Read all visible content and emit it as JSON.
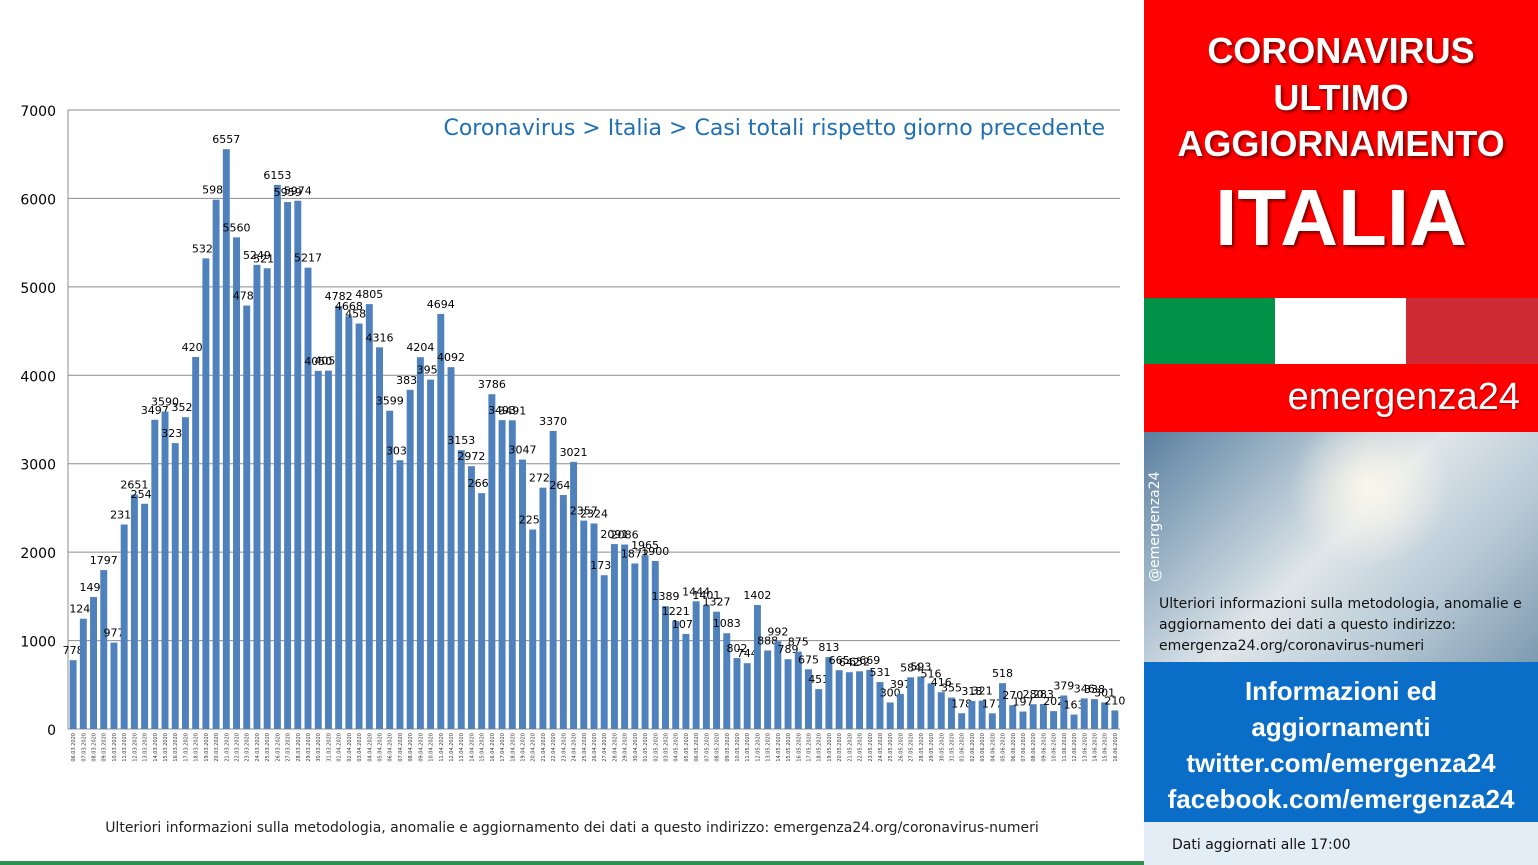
{
  "chart_data": {
    "type": "bar",
    "title": "Coronavirus > Italia > Casi totali rispetto giorno precedente",
    "xlabel": "",
    "ylabel": "",
    "ylim": [
      0,
      7000
    ],
    "yticks": [
      0,
      1000,
      2000,
      3000,
      4000,
      5000,
      6000,
      7000
    ],
    "grid": true,
    "bar_color": "#4f81bd",
    "categories": [
      "06.03.2020",
      "07.03.2020",
      "08.03.2020",
      "09.03.2020",
      "10.03.2020",
      "11.03.2020",
      "12.03.2020",
      "13.03.2020",
      "14.03.2020",
      "15.03.2020",
      "16.03.2020",
      "17.03.2020",
      "18.03.2020",
      "19.03.2020",
      "20.03.2020",
      "21.03.2020",
      "22.03.2020",
      "23.03.2020",
      "24.03.2020",
      "25.03.2020",
      "26.03.2020",
      "27.03.2020",
      "28.03.2020",
      "29.03.2020",
      "30.03.2020",
      "31.03.2020",
      "01.04.2020",
      "02.04.2020",
      "03.04.2020",
      "04.04.2020",
      "05.04.2020",
      "06.04.2020",
      "07.04.2020",
      "08.04.2020",
      "09.04.2020",
      "10.04.2020",
      "11.04.2020",
      "12.04.2020",
      "13.04.2020",
      "14.04.2020",
      "15.04.2020",
      "16.04.2020",
      "17.04.2020",
      "18.04.2020",
      "19.04.2020",
      "20.04.2020",
      "21.04.2020",
      "22.04.2020",
      "23.04.2020",
      "24.04.2020",
      "25.04.2020",
      "26.04.2020",
      "27.04.2020",
      "28.04.2020",
      "29.04.2020",
      "30.04.2020",
      "01.05.2020",
      "02.05.2020",
      "03.05.2020",
      "04.05.2020",
      "05.05.2020",
      "06.05.2020",
      "07.05.2020",
      "08.05.2020",
      "09.05.2020",
      "10.05.2020",
      "11.05.2020",
      "12.05.2020",
      "13.05.2020",
      "14.05.2020",
      "15.05.2020",
      "16.05.2020",
      "17.05.2020",
      "18.05.2020",
      "19.05.2020",
      "20.05.2020",
      "21.05.2020",
      "22.05.2020",
      "23.05.2020",
      "24.05.2020",
      "25.05.2020",
      "26.05.2020",
      "27.05.2020",
      "28.05.2020",
      "29.05.2020",
      "30.05.2020",
      "31.05.2020",
      "01.06.2020",
      "02.06.2020",
      "03.06.2020",
      "04.06.2020",
      "05.06.2020",
      "06.06.2020",
      "07.06.2020",
      "08.06.2020",
      "09.06.2020",
      "10.06.2020",
      "11.06.2020",
      "12.06.2020",
      "13.06.2020",
      "14.06.2020",
      "15.06.2020",
      "16.06.2020"
    ],
    "values": [
      778,
      1247,
      1492,
      1797,
      977,
      2313,
      2651,
      2547,
      3497,
      3590,
      3233,
      3526,
      4207,
      5322,
      5986,
      6557,
      5560,
      4789,
      5249,
      5210,
      6153,
      5959,
      5974,
      5217,
      4050,
      4053,
      4782,
      4668,
      4585,
      4805,
      4316,
      3599,
      3039,
      3836,
      4204,
      3951,
      4694,
      4092,
      3153,
      2972,
      2667,
      3786,
      3493,
      3491,
      3047,
      2256,
      2729,
      3370,
      2646,
      3021,
      2357,
      2324,
      1739,
      2091,
      2086,
      1872,
      1965,
      1900,
      1389,
      1221,
      1075,
      1444,
      1401,
      1327,
      1083,
      802,
      744,
      1402,
      888,
      992,
      789,
      875,
      675,
      451,
      813,
      665,
      642,
      652,
      669,
      531,
      300,
      397,
      584,
      593,
      516,
      416,
      355,
      178,
      318,
      321,
      177,
      518,
      270,
      197,
      280,
      283,
      202,
      379,
      163,
      346,
      338,
      301,
      210
    ]
  },
  "footnote": "Ulteriori informazioni sulla metodologia, anomalie e aggiornamento dei dati a questo indirizzo: emergenza24.org/coronavirus-numeri",
  "sidebar": {
    "headline": [
      "CORONAVIRUS",
      "ULTIMO",
      "AGGIORNAMENTO",
      "ITALIA"
    ],
    "brand": "emergenza24",
    "handle": "@emergenza24",
    "info_text": "Ulteriori informazioni sulla metodologia, anomalie e aggiornamento dei dati a questo indirizzo: emergenza24.org/coronavirus-numeri",
    "social": [
      "Informazioni ed",
      "aggiornamenti",
      "twitter.com/emergenza24",
      "facebook.com/emergenza24"
    ],
    "updated": "Dati aggiornati alle 17:00",
    "colors": {
      "red": "#ff0000",
      "blue": "#0a6ec8",
      "flag_green": "#009246",
      "flag_white": "#ffffff",
      "flag_red": "#ce2b37"
    }
  }
}
